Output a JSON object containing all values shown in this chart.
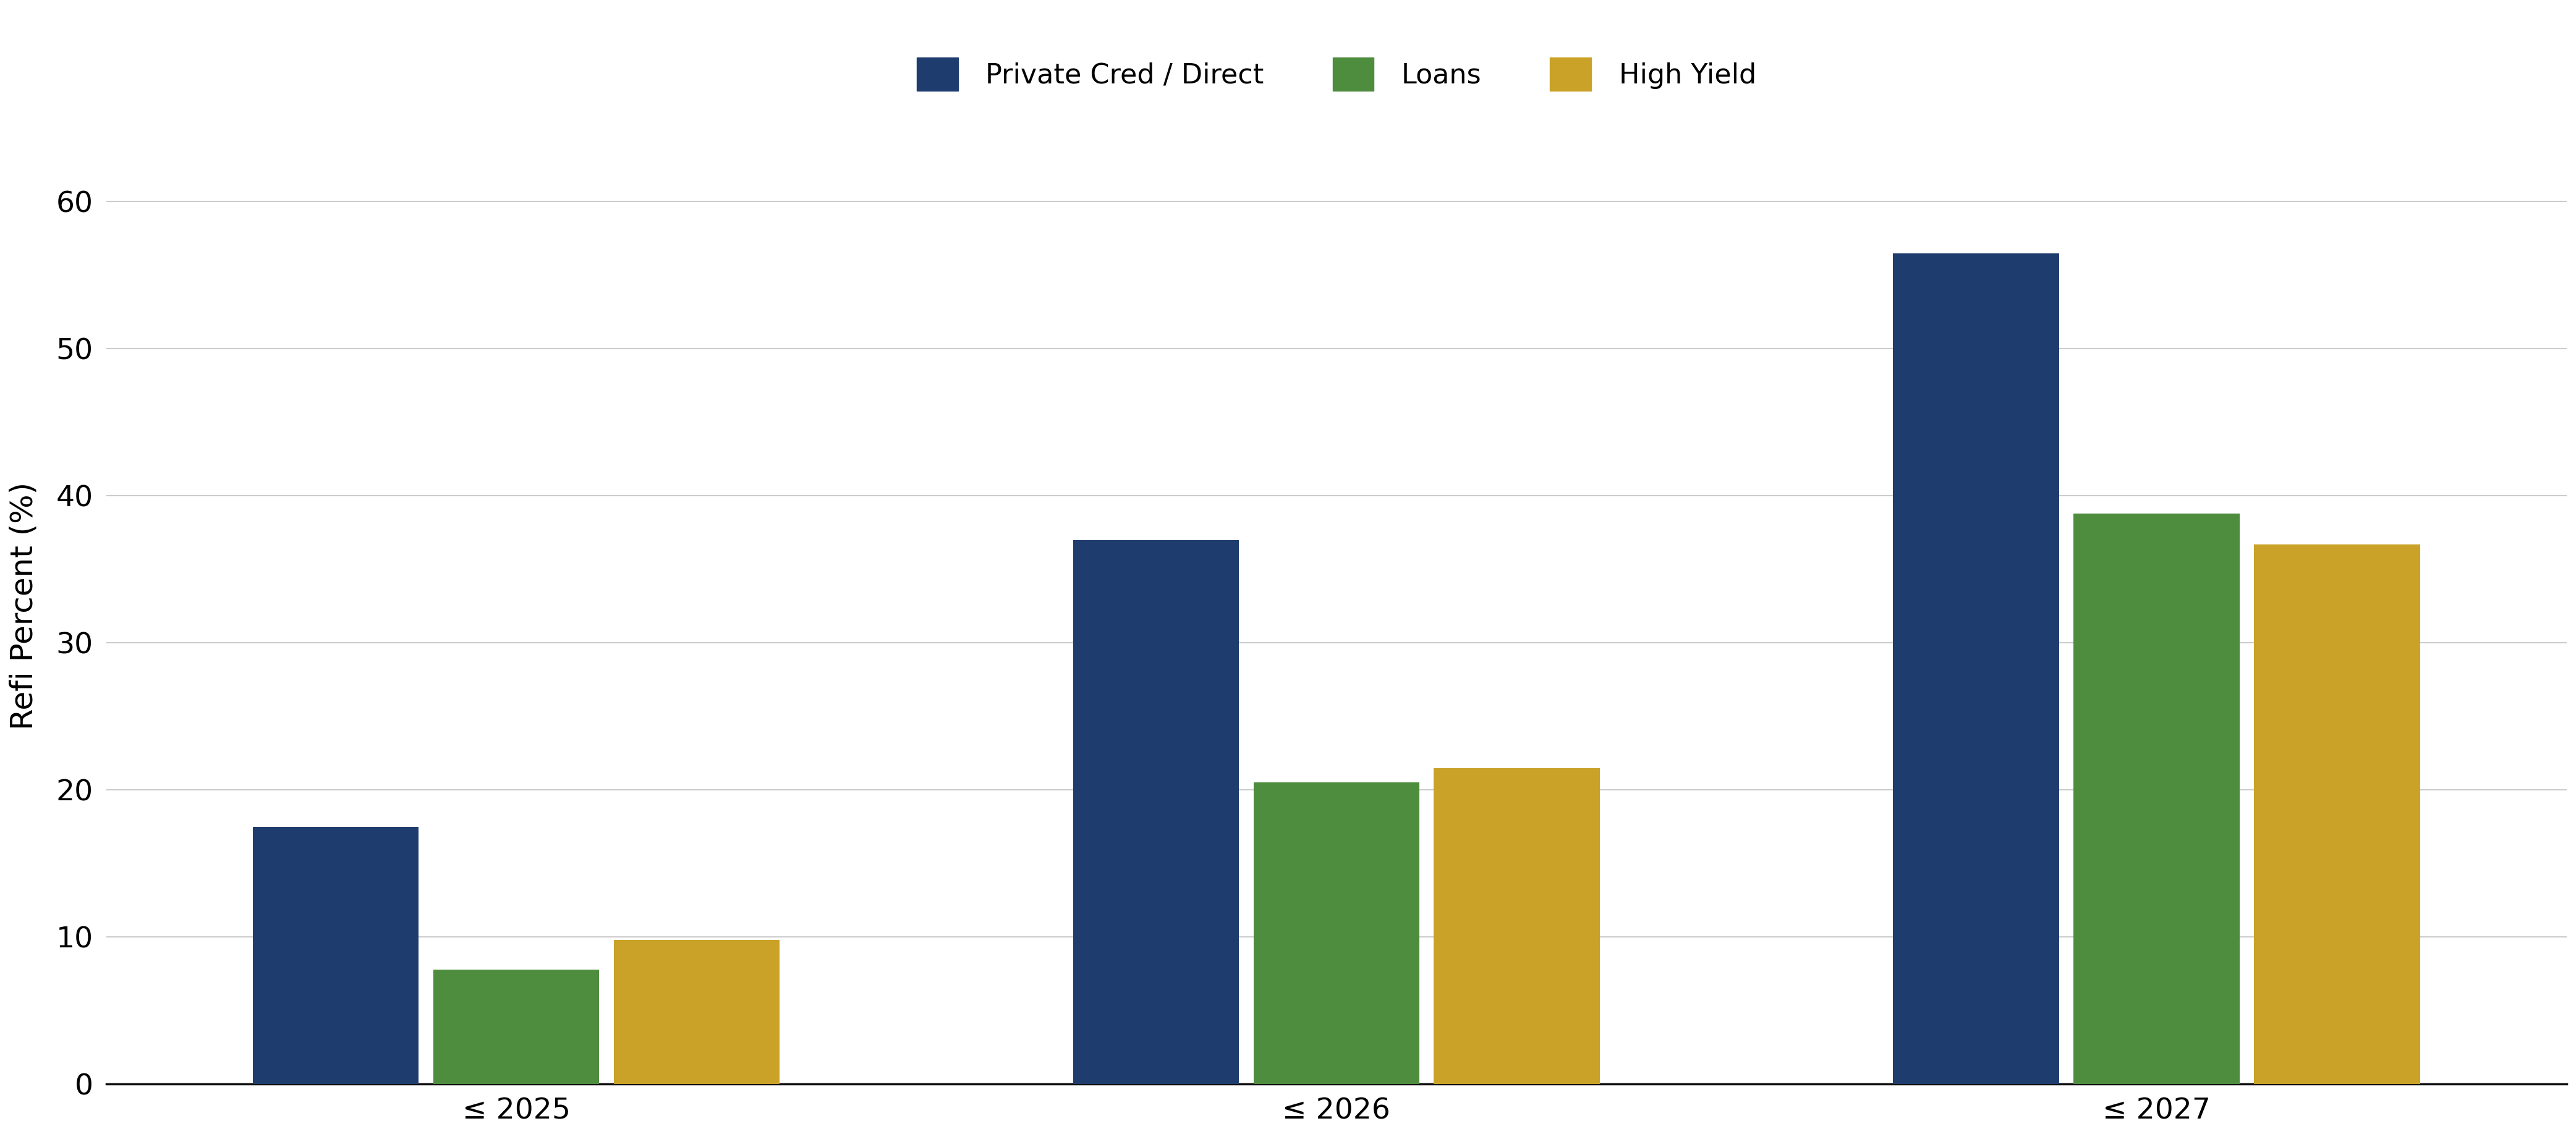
{
  "categories": [
    "≤ 2025",
    "≤ 2026",
    "≤ 2027"
  ],
  "series": {
    "Private Cred / Direct": [
      17.5,
      37.0,
      56.5
    ],
    "Loans": [
      7.8,
      20.5,
      38.8
    ],
    "High Yield": [
      9.8,
      21.5,
      36.7
    ]
  },
  "colors": {
    "Private Cred / Direct": "#1f3c6e",
    "Loans": "#4e8c3e",
    "High Yield": "#c9a227"
  },
  "ylabel": "Refi Percent (%)",
  "ylim": [
    0,
    65
  ],
  "yticks": [
    0,
    10,
    20,
    30,
    40,
    50,
    60
  ],
  "legend_labels": [
    "Private Cred / Direct",
    "Loans",
    "High Yield"
  ],
  "bar_width": 0.22,
  "background_color": "#ffffff",
  "grid_color": "#cccccc",
  "axis_fontsize": 36,
  "tick_fontsize": 34,
  "legend_fontsize": 32
}
